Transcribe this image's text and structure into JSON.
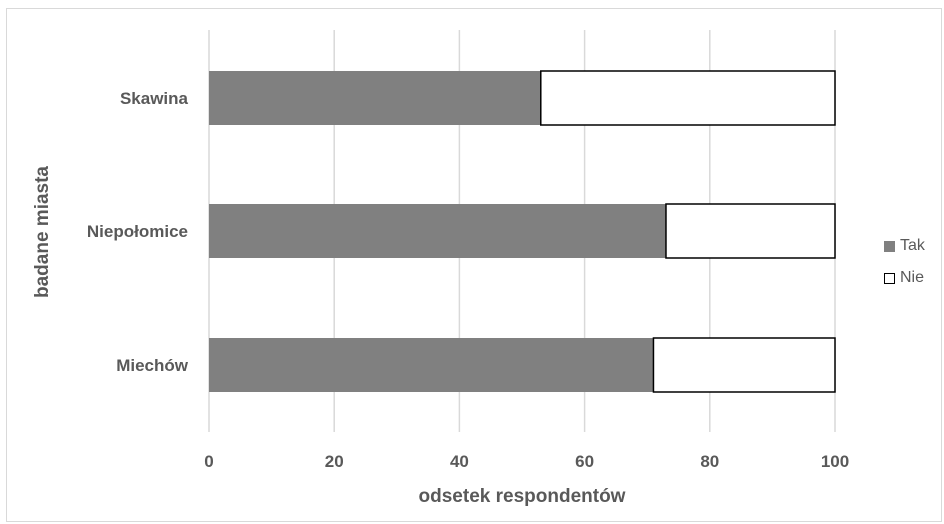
{
  "chart_data": {
    "type": "bar",
    "orientation": "horizontal",
    "stacked": true,
    "categories": [
      "Skawina",
      "Niepołomice",
      "Miechów"
    ],
    "series": [
      {
        "name": "Tak",
        "values": [
          53,
          73,
          71
        ],
        "color": "#808080"
      },
      {
        "name": "Nie",
        "values": [
          47,
          27,
          29
        ],
        "color": "#ffffff"
      }
    ],
    "xlabel": "odsetek respondentów",
    "ylabel": "badane miasta",
    "xlim": [
      0,
      100
    ],
    "xticks": [
      "0",
      "20",
      "40",
      "60",
      "80",
      "100"
    ],
    "grid": true,
    "legend_position": "right"
  }
}
